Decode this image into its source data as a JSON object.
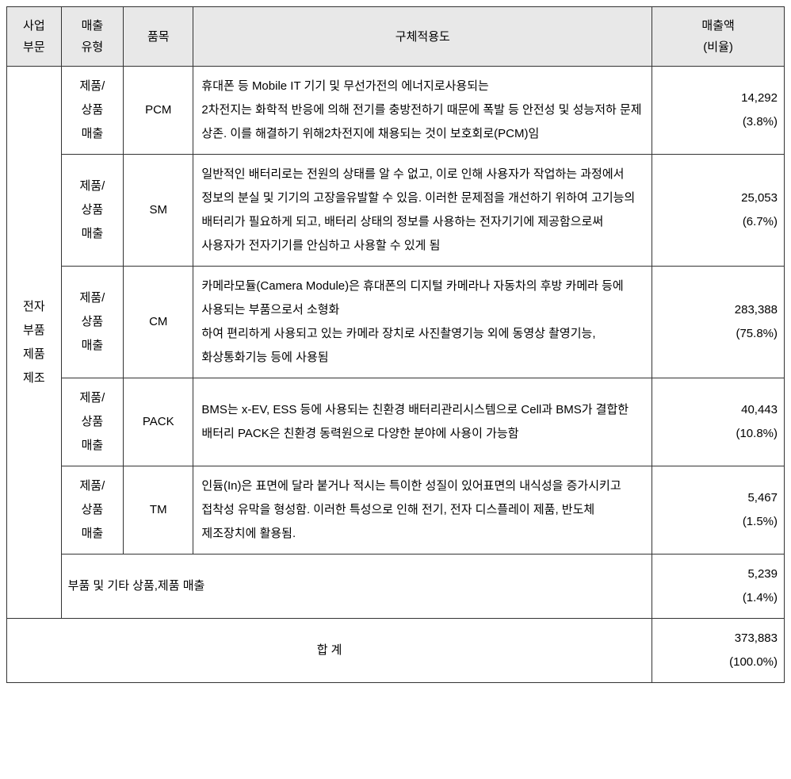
{
  "table": {
    "headers": {
      "division": "사업\n부문",
      "type": "매출\n유형",
      "item": "품목",
      "purpose": "구체적용도",
      "amount": "매출액\n(비율)"
    },
    "division_label": "전자\n부품\n제품\n제조",
    "rows": [
      {
        "type": "제품/\n상품\n매출",
        "item": "PCM",
        "purpose": "휴대폰 등 Mobile IT 기기 및 무선가전의 에너지로사용되는\n2차전지는 화학적 반응에 의해 전기를 충방전하기 때문에 폭발 등 안전성 및 성능저하 문제 상존. 이를 해결하기 위해2차전지에 채용되는 것이 보호회로(PCM)임",
        "amount": "14,292\n(3.8%)"
      },
      {
        "type": "제품/\n상품\n매출",
        "item": "SM",
        "purpose": "일반적인 배터리로는 전원의 상태를 알 수 없고, 이로 인해 사용자가 작업하는 과정에서 정보의 분실 및 기기의 고장을유발할 수 있음. 이러한 문제점을 개선하기 위하여 고기능의 배터리가 필요하게 되고, 배터리 상태의 정보를 사용하는 전자기기에 제공함으로써 사용자가 전자기기를 안심하고  사용할 수 있게 됨",
        "amount": "25,053\n(6.7%)"
      },
      {
        "type": "제품/\n상품\n매출",
        "item": "CM",
        "purpose": "카메라모듈(Camera Module)은 휴대폰의 디지털 카메라나 자동차의 후방 카메라 등에 사용되는 부품으로서 소형화\n하여 편리하게 사용되고 있는 카메라 장치로 사진촬영기능 외에 동영상 촬영기능, 화상통화기능 등에 사용됨",
        "amount": "283,388\n(75.8%)"
      },
      {
        "type": "제품/\n상품\n매출",
        "item": "PACK",
        "purpose": "BMS는 x-EV, ESS 등에 사용되는 친환경 배터리관리시스템으로 Cell과 BMS가 결합한 배터리 PACK은 친환경 동력원으로 다양한 분야에 사용이 가능함",
        "amount": "40,443\n(10.8%)"
      },
      {
        "type": "제품/\n상품\n매출",
        "item": "TM",
        "purpose": "인듐(In)은 표면에 달라 붙거나 적시는 특이한 성질이 있어표면의 내식성을 증가시키고 접착성 유막을 형성함. 이러한 특성으로 인해 전기, 전자 디스플레이 제품, 반도체 제조장치에 활용됨.",
        "amount": "5,467\n(1.5%)"
      }
    ],
    "other_row": {
      "label": "부품 및 기타 상품,제품 매출",
      "amount": "5,239\n(1.4%)"
    },
    "total_row": {
      "label": "합 계",
      "amount": "373,883\n(100.0%)"
    }
  },
  "styling": {
    "background_color": "#ffffff",
    "header_bg_color": "#e8e8e8",
    "border_color": "#333333",
    "font_size": 15,
    "line_height": 2.0,
    "widths": {
      "division": "7%",
      "type": "8%",
      "item": "9%",
      "purpose": "59%",
      "amount": "17%"
    }
  }
}
